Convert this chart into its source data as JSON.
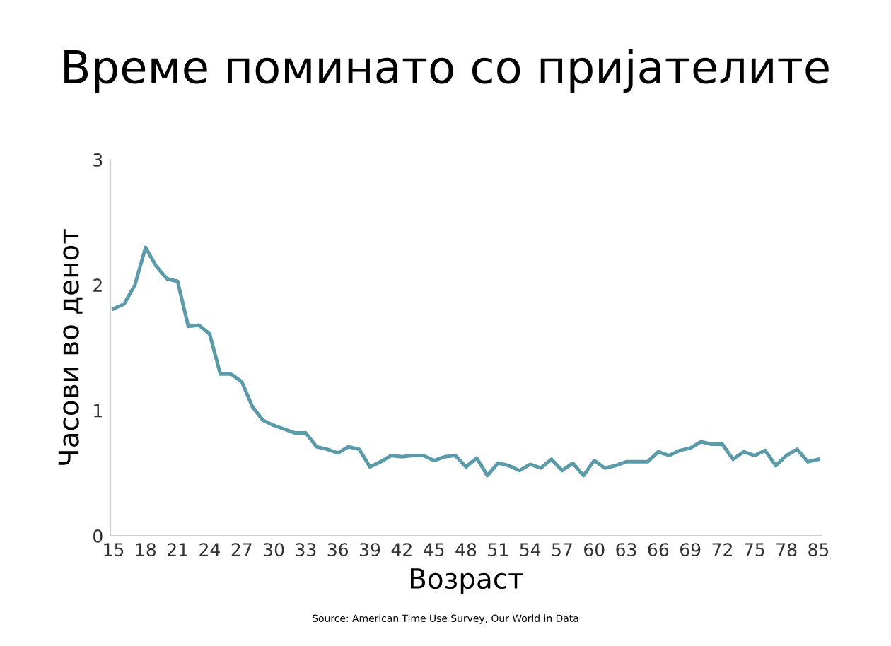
{
  "chart_data": {
    "type": "line",
    "title": "Време поминато со пријателите",
    "xlabel": "Возраст",
    "ylabel": "Часови во денот",
    "categories": [
      "15",
      null,
      null,
      "18",
      null,
      null,
      "21",
      null,
      null,
      "24",
      null,
      null,
      "27",
      null,
      null,
      "30",
      null,
      null,
      "33",
      null,
      null,
      "36",
      null,
      null,
      "39",
      null,
      null,
      "42",
      null,
      null,
      "45",
      null,
      null,
      "48",
      null,
      null,
      "51",
      null,
      null,
      "54",
      null,
      null,
      "57",
      null,
      null,
      "60",
      null,
      null,
      "63",
      null,
      null,
      "66",
      null,
      null,
      "69",
      null,
      null,
      "72",
      null,
      null,
      "75",
      null,
      null,
      "78",
      null,
      null,
      "85"
    ],
    "series": [
      {
        "color": "#5b9aa9",
        "values": [
          1.81,
          1.85,
          2.0,
          2.3,
          2.15,
          2.05,
          2.03,
          1.67,
          1.68,
          1.61,
          1.29,
          1.29,
          1.23,
          1.03,
          0.92,
          0.88,
          0.85,
          0.82,
          0.82,
          0.71,
          0.69,
          0.66,
          0.71,
          0.69,
          0.55,
          0.59,
          0.64,
          0.63,
          0.64,
          0.64,
          0.6,
          0.63,
          0.64,
          0.55,
          0.62,
          0.48,
          0.58,
          0.56,
          0.52,
          0.57,
          0.54,
          0.61,
          0.52,
          0.58,
          0.48,
          0.6,
          0.54,
          0.56,
          0.59,
          0.59,
          0.59,
          0.67,
          0.64,
          0.68,
          0.7,
          0.75,
          0.73,
          0.73,
          0.61,
          0.67,
          0.64,
          0.68,
          0.56,
          0.64,
          0.69,
          0.59,
          0.61
        ]
      }
    ],
    "ylim": [
      0,
      3
    ],
    "yticks": [
      0,
      1,
      2,
      3
    ],
    "grid": false,
    "legend": false,
    "marker": "none",
    "line_style": "solid",
    "annotations": [
      "Source: American Time Use Survey, Our World in Data"
    ]
  }
}
